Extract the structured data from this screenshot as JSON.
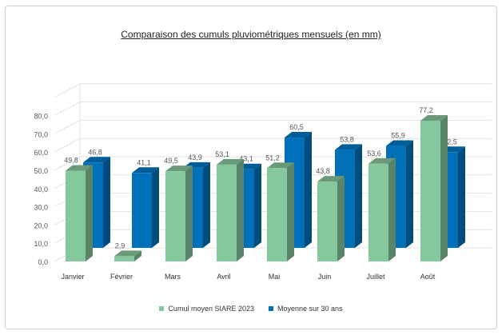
{
  "chart_data": {
    "type": "bar",
    "title": "Comparaison des cumuls pluviométriques mensuels (en mm)",
    "categories": [
      "Janvier",
      "Février",
      "Mars",
      "Avril",
      "Mai",
      "Juin",
      "Juillet",
      "Août"
    ],
    "series": [
      {
        "name": "Cumul moyen SIARE 2023",
        "values": [
          49.8,
          2.9,
          49.5,
          53.1,
          51.2,
          43.8,
          53.6,
          77.2
        ],
        "labels": [
          "49,8",
          "2,9",
          "49,5",
          "53,1",
          "51,2",
          "43,8",
          "53,6",
          "77,2"
        ],
        "color": "#86c89e"
      },
      {
        "name": "Moyenne sur 30 ans",
        "values": [
          46.8,
          41.1,
          43.9,
          43.1,
          60.5,
          53.8,
          55.9,
          52.5
        ],
        "labels": [
          "46,8",
          "41,1",
          "43,9",
          "43,1",
          "60,5",
          "53,8",
          "55,9",
          "52,5"
        ],
        "color": "#0070b8"
      }
    ],
    "yticks": [
      "0,0",
      "10,0",
      "20,0",
      "30,0",
      "40,0",
      "50,0",
      "60,0",
      "70,0",
      "80,0"
    ],
    "ylim": [
      0,
      80
    ],
    "grid": true,
    "legend": "bottom",
    "style": "3d-clustered"
  }
}
